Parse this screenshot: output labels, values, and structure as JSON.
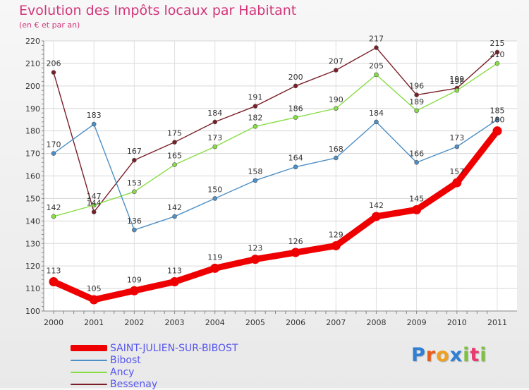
{
  "chart_data": {
    "type": "line",
    "title": "Evolution des Impôts locaux par Habitant",
    "subtitle": "(en € et par an)",
    "xlabel": "",
    "ylabel": "",
    "categories": [
      "2000",
      "2001",
      "2002",
      "2003",
      "2004",
      "2005",
      "2006",
      "2007",
      "2008",
      "2009",
      "2010",
      "2011"
    ],
    "ylim": [
      100,
      220
    ],
    "yticks": [
      100,
      110,
      120,
      130,
      140,
      150,
      160,
      170,
      180,
      190,
      200,
      210,
      220
    ],
    "grid": true,
    "legend_position": "bottom-left",
    "series": [
      {
        "name": "SAINT-JULIEN-SUR-BIBOST",
        "color": "#ee0000",
        "values": [
          113,
          105,
          109,
          113,
          119,
          123,
          126,
          129,
          142,
          145,
          157,
          180
        ],
        "labels": [
          "113",
          "105",
          "109",
          "113",
          "119",
          "123",
          "126",
          "129",
          "142",
          "145",
          "157",
          "180"
        ]
      },
      {
        "name": "Bibost",
        "color": "#4e8fc5",
        "values": [
          170,
          183,
          136,
          142,
          150,
          158,
          164,
          168,
          184,
          166,
          173,
          185
        ],
        "labels": [
          "170",
          "183",
          "136",
          "142",
          "150",
          "158",
          "164",
          "168",
          "184",
          "166",
          "173",
          "185"
        ]
      },
      {
        "name": "Ancy",
        "color": "#88dd44",
        "values": [
          142,
          147,
          153,
          165,
          173,
          182,
          186,
          190,
          205,
          189,
          198,
          210
        ],
        "labels": [
          "142",
          "147",
          "153",
          "165",
          "173",
          "182",
          "186",
          "190",
          "205",
          "189",
          "198",
          "210"
        ]
      },
      {
        "name": "Bessenay",
        "color": "#7a1f28",
        "values": [
          206,
          144,
          167,
          175,
          184,
          191,
          200,
          207,
          217,
          196,
          199,
          215
        ],
        "labels": [
          "206",
          "144",
          "167",
          "175",
          "184",
          "191",
          "200",
          "207",
          "217",
          "196",
          "199",
          "215"
        ]
      }
    ]
  },
  "logo": {
    "text": "Proxiti",
    "letter_colors": [
      "#2f7fd4",
      "#e85d1a",
      "#f0a020",
      "#2f7fd4",
      "#7cc140",
      "#e83a6e",
      "#7cc140"
    ]
  }
}
